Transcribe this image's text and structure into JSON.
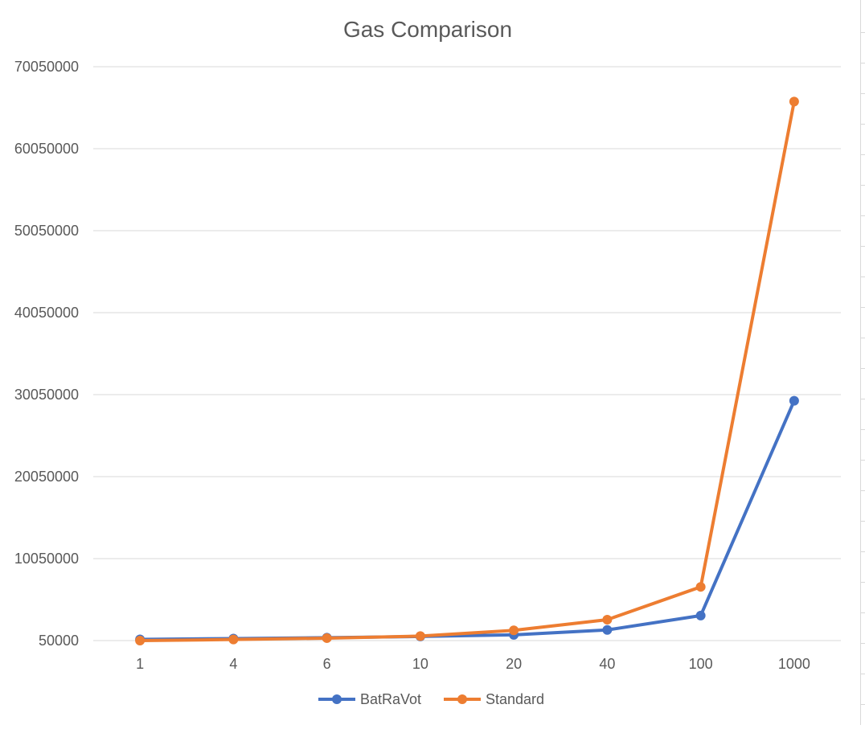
{
  "chart_data": {
    "type": "line",
    "title": "Gas Comparison",
    "xlabel": "",
    "ylabel": "",
    "categories": [
      "1",
      "4",
      "6",
      "10",
      "20",
      "40",
      "100",
      "1000"
    ],
    "y_ticks": [
      "50000",
      "10050000",
      "20050000",
      "30050000",
      "40050000",
      "50050000",
      "60050000",
      "70050000"
    ],
    "ylim": [
      50000,
      70050000
    ],
    "grid": true,
    "legend_position": "bottom",
    "series": [
      {
        "name": "BatRaVot",
        "color": "#4472C4",
        "values": [
          200000,
          300000,
          400000,
          550000,
          750000,
          1350000,
          3100000,
          29300000
        ]
      },
      {
        "name": "Standard",
        "color": "#ED7D31",
        "values": [
          50000,
          180000,
          350000,
          600000,
          1300000,
          2600000,
          6600000,
          65800000
        ]
      }
    ]
  }
}
